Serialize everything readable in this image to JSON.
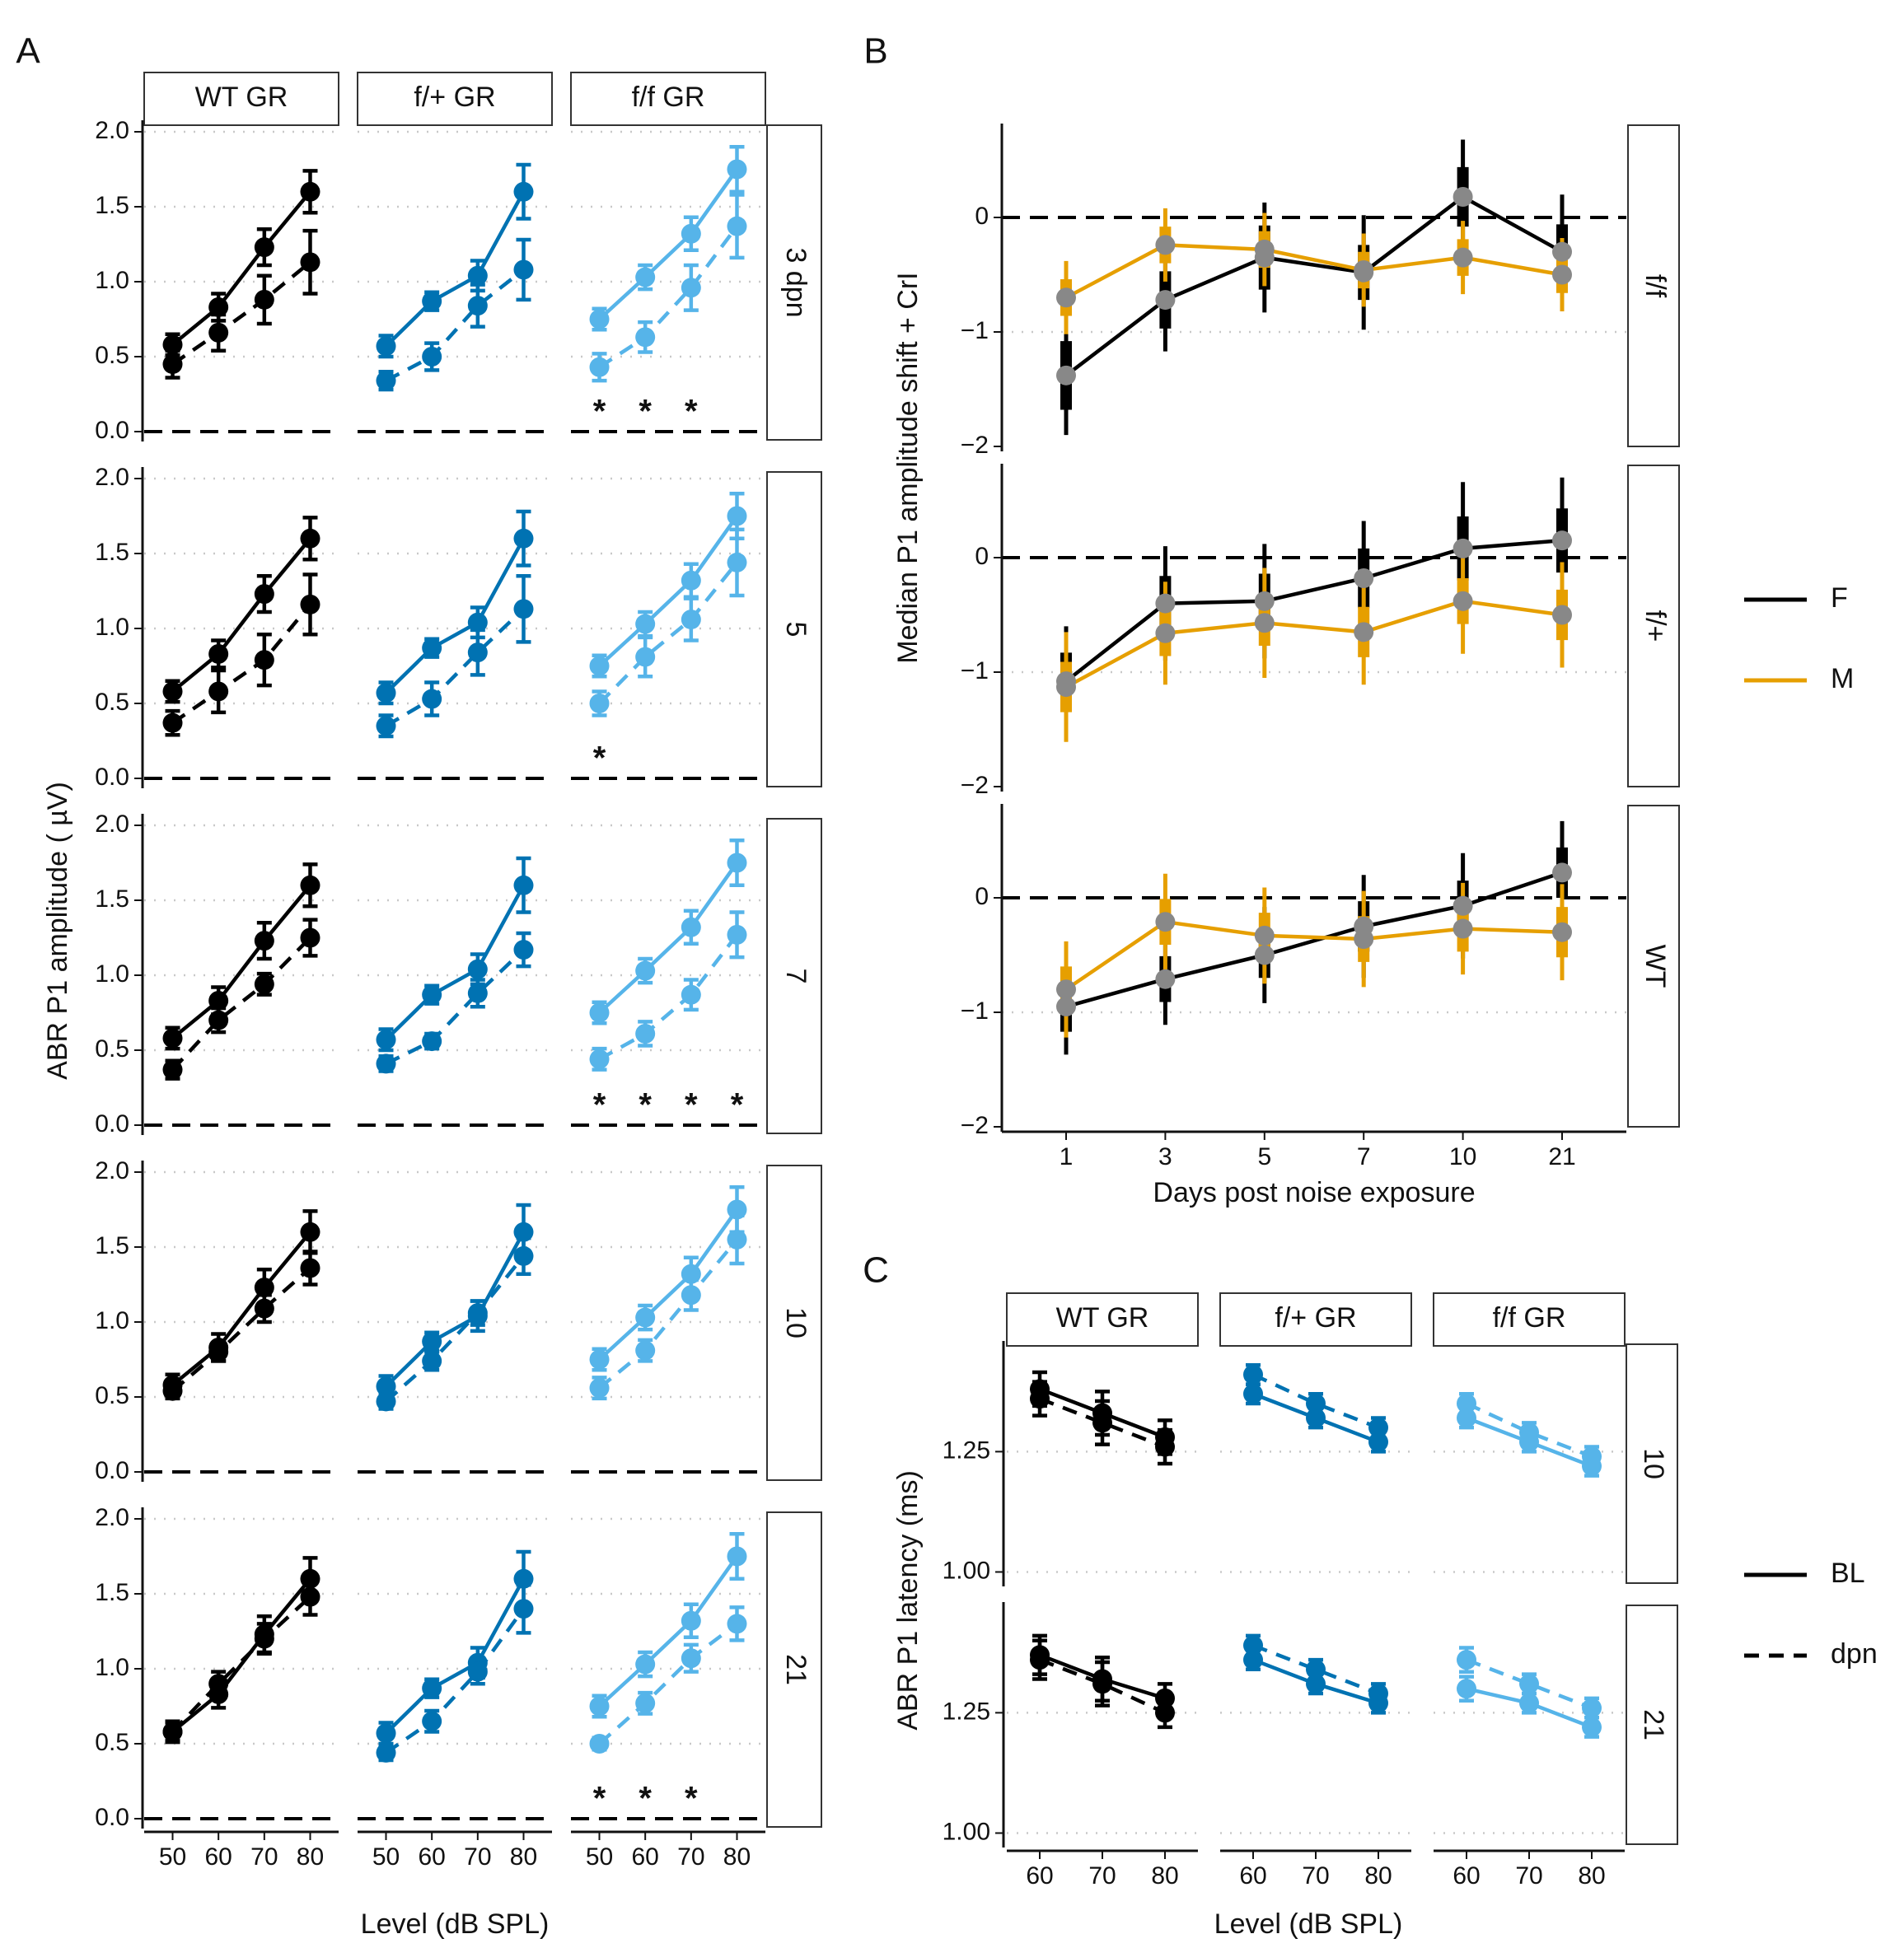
{
  "colors": {
    "wt": "#000000",
    "het": "#0072B2",
    "ff": "#56B4E9",
    "female": "#000000",
    "male": "#E69F00",
    "median_point": "#888888",
    "grid": "#c8c8c8"
  },
  "panel_labels": {
    "A": "A",
    "B": "B",
    "C": "C"
  },
  "chart_data": [
    {
      "id": "A",
      "type": "line",
      "title": "",
      "xlabel": "Level (dB SPL)",
      "ylabel": "ABR P1 amplitude ( µV)",
      "columns": [
        "WT GR",
        "f/+ GR",
        "f/f GR"
      ],
      "rows": [
        "3 dpn",
        "5",
        "7",
        "10",
        "21"
      ],
      "x": [
        50,
        60,
        70,
        80
      ],
      "x_ticks": [
        "50",
        "60",
        "70",
        "80"
      ],
      "ylim": [
        0,
        2.0
      ],
      "y_ticks": [
        "0.0",
        "0.5",
        "1.0",
        "1.5",
        "2.0"
      ],
      "baseline": {
        "WT GR": {
          "values": [
            0.58,
            0.83,
            1.23,
            1.6
          ],
          "err": [
            0.07,
            0.09,
            0.12,
            0.14
          ]
        },
        "f/+ GR": {
          "values": [
            0.57,
            0.87,
            1.04,
            1.6
          ],
          "err": [
            0.07,
            0.06,
            0.1,
            0.18
          ]
        },
        "f/f GR": {
          "values": [
            0.75,
            1.03,
            1.32,
            1.75
          ],
          "err": [
            0.07,
            0.08,
            0.11,
            0.15
          ]
        }
      },
      "dpn": {
        "3 dpn": {
          "WT GR": {
            "values": [
              0.45,
              0.66,
              0.88,
              1.13
            ],
            "err": [
              0.09,
              0.12,
              0.16,
              0.21
            ]
          },
          "f/+ GR": {
            "values": [
              0.34,
              0.5,
              0.84,
              1.08
            ],
            "err": [
              0.06,
              0.09,
              0.14,
              0.2
            ]
          },
          "f/f GR": {
            "values": [
              0.43,
              0.63,
              0.96,
              1.37
            ],
            "err": [
              0.09,
              0.1,
              0.15,
              0.21
            ]
          }
        },
        "5": {
          "WT GR": {
            "values": [
              0.37,
              0.58,
              0.79,
              1.16
            ],
            "err": [
              0.08,
              0.14,
              0.17,
              0.2
            ]
          },
          "f/+ GR": {
            "values": [
              0.35,
              0.53,
              0.84,
              1.13
            ],
            "err": [
              0.07,
              0.11,
              0.15,
              0.22
            ]
          },
          "f/f GR": {
            "values": [
              0.5,
              0.81,
              1.06,
              1.44
            ],
            "err": [
              0.08,
              0.13,
              0.14,
              0.22
            ]
          }
        },
        "7": {
          "WT GR": {
            "values": [
              0.37,
              0.7,
              0.94,
              1.25
            ],
            "err": [
              0.06,
              0.08,
              0.07,
              0.12
            ]
          },
          "f/+ GR": {
            "values": [
              0.41,
              0.56,
              0.88,
              1.17
            ],
            "err": [
              0.05,
              0.05,
              0.09,
              0.11
            ]
          },
          "f/f GR": {
            "values": [
              0.44,
              0.61,
              0.87,
              1.27
            ],
            "err": [
              0.07,
              0.08,
              0.1,
              0.15
            ]
          }
        },
        "10": {
          "WT GR": {
            "values": [
              0.54,
              0.8,
              1.09,
              1.36
            ],
            "err": [
              0.05,
              0.06,
              0.09,
              0.11
            ]
          },
          "f/+ GR": {
            "values": [
              0.47,
              0.74,
              1.06,
              1.44
            ],
            "err": [
              0.05,
              0.06,
              0.08,
              0.12
            ]
          },
          "f/f GR": {
            "values": [
              0.56,
              0.81,
              1.18,
              1.55
            ],
            "err": [
              0.07,
              0.07,
              0.1,
              0.16
            ]
          }
        },
        "21": {
          "WT GR": {
            "values": [
              0.58,
              0.9,
              1.2,
              1.48
            ],
            "err": [
              0.06,
              0.08,
              0.1,
              0.12
            ]
          },
          "f/+ GR": {
            "values": [
              0.44,
              0.65,
              0.98,
              1.4
            ],
            "err": [
              0.05,
              0.07,
              0.08,
              0.16
            ]
          },
          "f/f GR": {
            "values": [
              0.5,
              0.77,
              1.07,
              1.3
            ],
            "err": [
              0.04,
              0.07,
              0.09,
              0.11
            ]
          }
        }
      },
      "significance": {
        "3 dpn": {
          "f/f GR": [
            50,
            60,
            70
          ]
        },
        "5": {
          "f/f GR": [
            50
          ]
        },
        "7": {
          "f/f GR": [
            50,
            60,
            70,
            80
          ]
        },
        "21": {
          "f/f GR": [
            50,
            60,
            70
          ]
        }
      },
      "significance_mark": "*"
    },
    {
      "id": "B",
      "type": "line",
      "title": "",
      "xlabel": "Days post noise exposure",
      "ylabel": "Median P1 amplitude shift + CrI",
      "rows": [
        "f/f",
        "f/+",
        "WT"
      ],
      "x": [
        "1",
        "3",
        "5",
        "7",
        "10",
        "21"
      ],
      "ylim": [
        -2,
        0.8
      ],
      "y_ticks": [
        "0",
        "−1",
        "−2"
      ],
      "series": {
        "f/f": {
          "F": {
            "median": [
              -1.38,
              -0.72,
              -0.35,
              -0.48,
              0.18,
              -0.3
            ],
            "inner": [
              0.3,
              0.25,
              0.28,
              0.24,
              0.26,
              0.24
            ],
            "outer": [
              0.52,
              0.45,
              0.48,
              0.5,
              0.5,
              0.5
            ]
          },
          "M": {
            "median": [
              -0.7,
              -0.24,
              -0.28,
              -0.46,
              -0.35,
              -0.5
            ],
            "inner": [
              0.16,
              0.16,
              0.16,
              0.16,
              0.16,
              0.16
            ],
            "outer": [
              0.32,
              0.32,
              0.32,
              0.32,
              0.32,
              0.32
            ]
          }
        },
        "f/+": {
          "F": {
            "median": [
              -1.08,
              -0.4,
              -0.38,
              -0.18,
              0.08,
              0.15
            ],
            "inner": [
              0.25,
              0.24,
              0.24,
              0.26,
              0.28,
              0.28
            ],
            "outer": [
              0.48,
              0.5,
              0.5,
              0.5,
              0.58,
              0.55
            ]
          },
          "M": {
            "median": [
              -1.13,
              -0.66,
              -0.57,
              -0.65,
              -0.38,
              -0.5
            ],
            "inner": [
              0.22,
              0.2,
              0.2,
              0.22,
              0.2,
              0.22
            ],
            "outer": [
              0.48,
              0.45,
              0.48,
              0.46,
              0.46,
              0.46
            ]
          }
        },
        "WT": {
          "F": {
            "median": [
              -0.95,
              -0.71,
              -0.5,
              -0.25,
              -0.07,
              0.22
            ],
            "inner": [
              0.22,
              0.2,
              0.2,
              0.22,
              0.22,
              0.22
            ],
            "outer": [
              0.42,
              0.4,
              0.42,
              0.45,
              0.46,
              0.45
            ]
          },
          "M": {
            "median": [
              -0.8,
              -0.21,
              -0.33,
              -0.36,
              -0.27,
              -0.3
            ],
            "inner": [
              0.2,
              0.2,
              0.2,
              0.2,
              0.2,
              0.22
            ],
            "outer": [
              0.42,
              0.42,
              0.42,
              0.42,
              0.4,
              0.42
            ]
          }
        }
      },
      "legend": [
        "F",
        "M"
      ],
      "legend_position": "right"
    },
    {
      "id": "C",
      "type": "line",
      "title": "",
      "xlabel": "Level (dB SPL)",
      "ylabel": "ABR P1 latency (ms)",
      "columns": [
        "WT GR",
        "f/+ GR",
        "f/f GR"
      ],
      "rows": [
        "10",
        "21"
      ],
      "x": [
        60,
        70,
        80
      ],
      "x_ticks": [
        "60",
        "70",
        "80"
      ],
      "ylim": [
        0.97,
        1.48
      ],
      "y_ticks": [
        "1.00",
        "1.25"
      ],
      "series": {
        "10": {
          "WT GR": {
            "BL": [
              1.38,
              1.33,
              1.28
            ],
            "dpn": [
              1.36,
              1.31,
              1.26
            ],
            "err": [
              0.035,
              0.045,
              0.035
            ]
          },
          "f/+ GR": {
            "BL": [
              1.37,
              1.32,
              1.27
            ],
            "dpn": [
              1.41,
              1.35,
              1.3
            ],
            "err": [
              0.02,
              0.02,
              0.02
            ]
          },
          "f/f GR": {
            "BL": [
              1.32,
              1.27,
              1.22
            ],
            "dpn": [
              1.35,
              1.29,
              1.24
            ],
            "err": [
              0.02,
              0.02,
              0.02
            ]
          }
        },
        "21": {
          "WT GR": {
            "BL": [
              1.37,
              1.32,
              1.28
            ],
            "dpn": [
              1.36,
              1.31,
              1.25
            ],
            "err": [
              0.04,
              0.045,
              0.03
            ]
          },
          "f/+ GR": {
            "BL": [
              1.36,
              1.31,
              1.27
            ],
            "dpn": [
              1.39,
              1.34,
              1.29
            ],
            "err": [
              0.02,
              0.02,
              0.02
            ]
          },
          "f/f GR": {
            "BL": [
              1.3,
              1.27,
              1.22
            ],
            "dpn": [
              1.36,
              1.31,
              1.26
            ],
            "err": [
              0.025,
              0.02,
              0.02
            ]
          }
        }
      },
      "legend": [
        "BL",
        "dpn"
      ],
      "legend_position": "right"
    }
  ]
}
